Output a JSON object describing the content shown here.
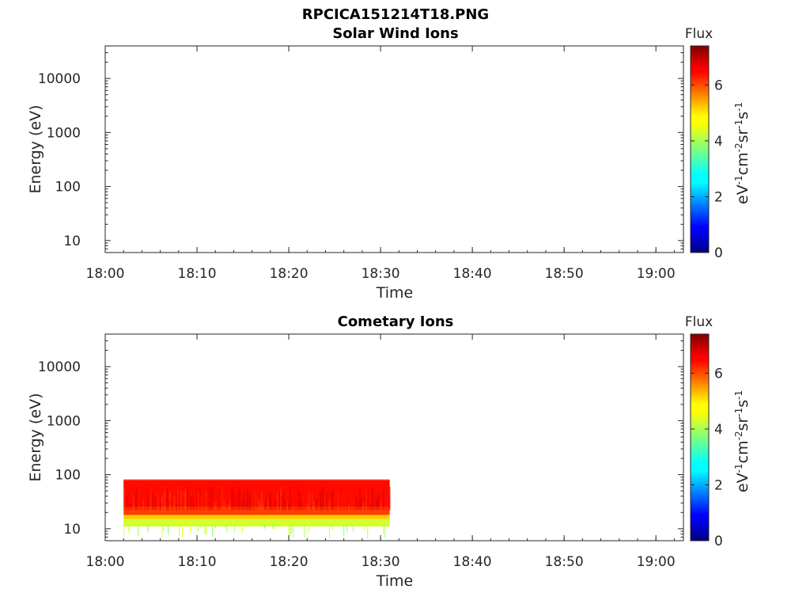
{
  "figure_title": "RPCICA151214T18.PNG",
  "chart_data": [
    {
      "type": "heatmap",
      "title": "Solar Wind Ions",
      "xlabel": "Time",
      "ylabel": "Energy (eV)",
      "x_ticks": [
        "18:00",
        "18:10",
        "18:20",
        "18:30",
        "18:40",
        "18:50",
        "19:00"
      ],
      "xlim": [
        "18:00",
        "19:03"
      ],
      "y_scale": "log",
      "y_ticks": [
        "10",
        "100",
        "1000",
        "10000"
      ],
      "ylim": [
        6,
        40000
      ],
      "colorbar": {
        "title": "Flux",
        "ticks": [
          "0",
          "2",
          "4",
          "6"
        ],
        "range": [
          0,
          7.4
        ],
        "colormap": "jet"
      },
      "data_blocks": []
    },
    {
      "type": "heatmap",
      "title": "Cometary Ions",
      "xlabel": "Time",
      "ylabel": "Energy (eV)",
      "x_ticks": [
        "18:00",
        "18:10",
        "18:20",
        "18:30",
        "18:40",
        "18:50",
        "19:00"
      ],
      "xlim": [
        "18:00",
        "19:03"
      ],
      "y_scale": "log",
      "y_ticks": [
        "10",
        "100",
        "1000",
        "10000"
      ],
      "ylim": [
        6,
        40000
      ],
      "colorbar": {
        "title": "Flux",
        "ticks": [
          "0",
          "2",
          "4",
          "6"
        ],
        "range": [
          0,
          7.4
        ],
        "colormap": "jet"
      },
      "data_blocks": [
        {
          "t_start": "18:02",
          "t_end": "18:31",
          "layers": [
            {
              "e_low": 25,
              "e_high": 80,
              "flux": 6.4
            },
            {
              "e_low": 80,
              "e_high": 82,
              "flux": 5.7
            },
            {
              "e_low": 18,
              "e_high": 25,
              "flux": 6.0
            },
            {
              "e_low": 15,
              "e_high": 18,
              "flux": 5.0
            },
            {
              "e_low": 11,
              "e_high": 15,
              "flux": 4.3
            }
          ]
        }
      ]
    }
  ]
}
